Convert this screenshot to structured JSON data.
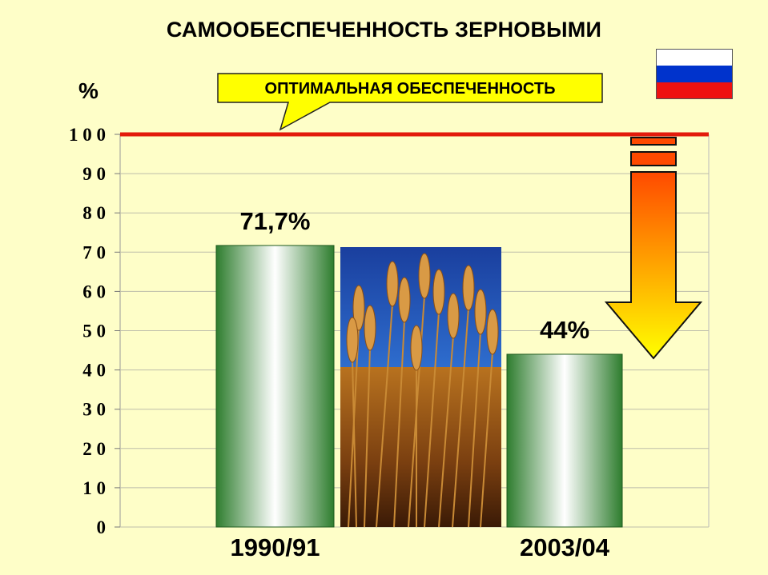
{
  "title": "САМООБЕСПЕЧЕННОСТЬ ЗЕРНОВЫМИ",
  "unit_label": "%",
  "callout_text": "ОПТИМАЛЬНАЯ ОБЕСПЕЧЕННОСТЬ",
  "flag": {
    "stripes": [
      "#ffffff",
      "#0033cc",
      "#ee1111"
    ]
  },
  "colors": {
    "background": "#fefec8",
    "bar_dark": "#2e7d2e",
    "bar_light": "#ffffff",
    "reference_line": "#e31b0b",
    "callout_fill": "#ffff00",
    "arrow_top": "#ff4a00",
    "arrow_bottom": "#ffff00"
  },
  "chart_data": {
    "type": "bar",
    "title": "САМООБЕСПЕЧЕННОСТЬ ЗЕРНОВЫМИ",
    "ylabel": "%",
    "ylim": [
      0,
      100
    ],
    "yticks": [
      0,
      10,
      20,
      30,
      40,
      50,
      60,
      70,
      80,
      90,
      100
    ],
    "ytick_labels": [
      "0",
      "1 0",
      "2 0",
      "3 0",
      "4 0",
      "5 0",
      "6 0",
      "7 0",
      "8 0",
      "9 0",
      "1 0 0"
    ],
    "categories": [
      "1990/91",
      "2003/04"
    ],
    "values": [
      71.7,
      44
    ],
    "data_labels": [
      "71,7%",
      "44%"
    ],
    "reference_line": {
      "value": 100,
      "label": "ОПТИМАЛЬНАЯ ОБЕСПЕЧЕННОСТЬ"
    },
    "grid": true
  }
}
